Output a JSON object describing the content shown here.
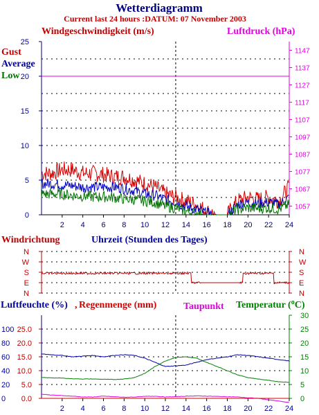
{
  "header": {
    "title": "Wetterdiagramm",
    "subtitle": "Current last 24 hours :DATUM: 07 November 2003"
  },
  "colors": {
    "gust": "#d00000",
    "average": "#0000c0",
    "low": "#007000",
    "pressure": "#e000e0",
    "winddir": "#c00000",
    "humidity": "#0000a0",
    "rain": "#d00000",
    "dewpoint": "#e000e0",
    "temperature": "#008000",
    "grid": "#000000",
    "noon_line": "#000000"
  },
  "chart_data": [
    {
      "type": "line",
      "title": "",
      "ylabel": "Windgeschwindigkeit (m/s)",
      "y2label": "Luftdruck (hPa)",
      "xlabel": "",
      "xlim": [
        0,
        24
      ],
      "ylim": [
        0,
        25
      ],
      "y2lim": [
        1052,
        1152
      ],
      "grid": true,
      "legend": [
        "Gust",
        "Average",
        "Low"
      ],
      "x_ticks": [
        "2",
        "4",
        "6",
        "8",
        "10",
        "12",
        "14",
        "16",
        "18",
        "20",
        "22",
        "24"
      ],
      "y_ticks": [
        "0",
        "5",
        "10",
        "15",
        "20",
        "25"
      ],
      "y2_ticks": [
        "1057",
        "1067",
        "1077",
        "1087",
        "1097",
        "1107",
        "1117",
        "1127",
        "1137",
        "1147"
      ],
      "x": [
        0,
        1,
        2,
        3,
        4,
        5,
        6,
        7,
        8,
        9,
        10,
        11,
        12,
        13,
        14,
        15,
        16,
        17,
        18,
        19,
        20,
        21,
        22,
        23,
        24
      ],
      "series": [
        {
          "name": "Gust",
          "axis": "left",
          "values": [
            6,
            6,
            6.5,
            6.5,
            6,
            6,
            5.8,
            5.5,
            5.5,
            5,
            4.5,
            4,
            3,
            2.5,
            2,
            1.5,
            0.5,
            0,
            0,
            2,
            2.5,
            2.2,
            2.5,
            2,
            4
          ]
        },
        {
          "name": "Average",
          "axis": "left",
          "values": [
            4.5,
            4.5,
            4.3,
            4.2,
            4,
            4,
            4,
            4,
            3.8,
            3.5,
            3,
            2.8,
            2.2,
            1.8,
            1.2,
            0.8,
            0.2,
            0,
            0,
            1.5,
            1.8,
            1.6,
            1.8,
            1.5,
            2.5
          ]
        },
        {
          "name": "Low",
          "axis": "left",
          "values": [
            3,
            3,
            3,
            2.8,
            2.7,
            2.6,
            2.6,
            2.5,
            2.3,
            2.2,
            2,
            1.8,
            1.2,
            1,
            0.5,
            0.2,
            0,
            0,
            0,
            0.8,
            1,
            0.9,
            1,
            0.8,
            1.5
          ]
        },
        {
          "name": "Luftdruck",
          "axis": "right",
          "values": [
            1132,
            1132,
            1132,
            1132,
            1132,
            1132,
            1132,
            1132,
            1132,
            1132,
            1132,
            1132,
            1132,
            1132,
            1132,
            1132,
            1132,
            1132,
            1132,
            1132,
            1132,
            1132,
            1132,
            1132,
            1132
          ]
        }
      ],
      "noon_marker_x": 13
    },
    {
      "type": "line",
      "title": "Windrichtung",
      "xlabel": "Uhrzeit (Stunden des Tages)",
      "xlim": [
        0,
        24
      ],
      "y_categories": [
        "N",
        "W",
        "S",
        "E",
        "N"
      ],
      "grid": true,
      "x": [
        0,
        1,
        2,
        3,
        4,
        5,
        6,
        7,
        8,
        9,
        10,
        11,
        12,
        13,
        14,
        15,
        16,
        17,
        18,
        19,
        20,
        21,
        22,
        23,
        24
      ],
      "series": [
        {
          "name": "Windrichtung",
          "values": [
            "S",
            "S",
            "S",
            "S",
            "S",
            "S",
            "S",
            "S",
            "S",
            "S",
            "S",
            "S",
            "S",
            "S",
            "S",
            "E",
            "E",
            "E",
            "E",
            "E",
            "S",
            "S",
            "S",
            "E",
            "E"
          ]
        }
      ],
      "noon_marker_x": 13
    },
    {
      "type": "line",
      "title": "",
      "xlim": [
        0,
        24
      ],
      "labels": {
        "humidity": "Luftfeuchte (%)",
        "rain": "Regenmenge (mm)",
        "dewpoint": "Taupunkt",
        "temperature": "Temperatur (",
        "temperature_unit": "C)"
      },
      "humidity_ticks": [
        "0",
        "20",
        "40",
        "60",
        "80",
        "100"
      ],
      "rain_ticks": [
        "0.0",
        "5.0",
        "10.0",
        "15.0",
        "20.0",
        "25.0"
      ],
      "temp_ticks": [
        "0",
        "5",
        "10",
        "15",
        "20",
        "25",
        "30"
      ],
      "x_ticks": [
        "2",
        "4",
        "6",
        "8",
        "10",
        "12",
        "14",
        "16",
        "18",
        "20",
        "22",
        "24"
      ],
      "grid": true,
      "x": [
        0,
        1,
        2,
        3,
        4,
        5,
        6,
        7,
        8,
        9,
        10,
        11,
        12,
        13,
        14,
        15,
        16,
        17,
        18,
        19,
        20,
        21,
        22,
        23,
        24
      ],
      "series": [
        {
          "name": "Luftfeuchte",
          "axis": "humidity",
          "values": [
            64,
            63,
            62,
            60,
            61,
            62,
            60,
            62,
            63,
            62,
            58,
            52,
            46,
            47,
            48,
            52,
            56,
            58,
            60,
            63,
            62,
            60,
            58,
            56,
            54
          ]
        },
        {
          "name": "Temperatur",
          "axis": "temperature",
          "values": [
            7.5,
            7.4,
            7.3,
            7.1,
            7,
            7,
            6.9,
            6.8,
            7,
            7.5,
            9,
            11.5,
            13.5,
            14.8,
            15,
            14.5,
            13,
            11.5,
            10,
            8.5,
            7.5,
            7,
            6.5,
            6,
            5.8
          ]
        },
        {
          "name": "Taupunkt",
          "axis": "temperature",
          "values": [
            1.5,
            1.2,
            1.0,
            0.8,
            0.5,
            0.5,
            0.8,
            0.6,
            0.4,
            0.5,
            0.7,
            0.8,
            0.5,
            0.6,
            0.8,
            0.9,
            0.8,
            0.7,
            0.6,
            0.5,
            0.2,
            0,
            -0.5,
            -1,
            -1.5
          ]
        },
        {
          "name": "Regenmenge",
          "axis": "rain",
          "values": [
            0,
            0,
            0,
            0,
            0,
            0,
            0,
            0,
            0,
            0,
            0,
            0,
            0,
            0,
            0,
            0,
            0,
            0,
            0,
            0,
            0,
            0,
            0,
            0,
            0
          ]
        }
      ],
      "noon_marker_x": 13
    }
  ]
}
